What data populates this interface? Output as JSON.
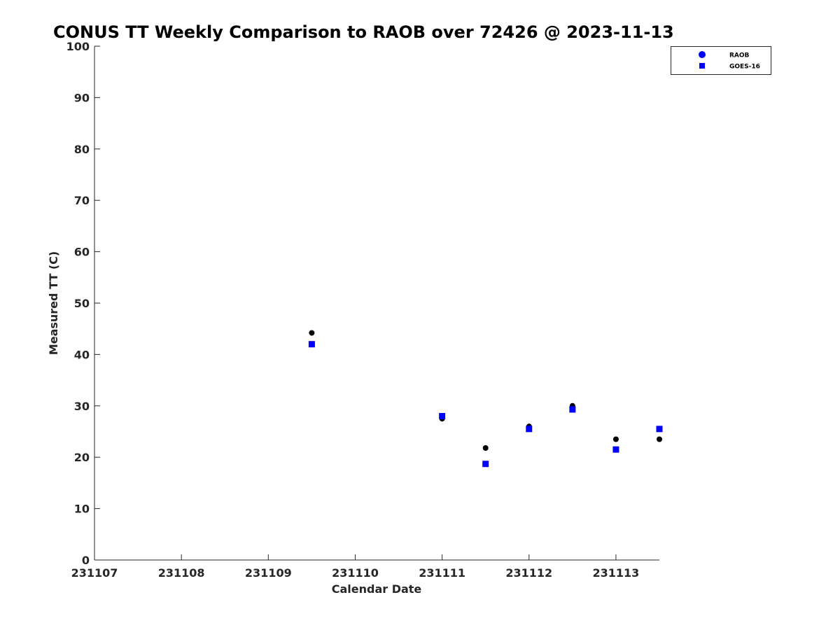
{
  "chart_data": {
    "type": "scatter",
    "title": "CONUS TT Weekly Comparison to RAOB over 72426 @ 2023-11-13",
    "xlabel": "Calendar Date",
    "ylabel": "Measured TT (C)",
    "xlim": [
      "2023-11-07",
      "2023-11-13T12:00"
    ],
    "ylim": [
      0,
      100
    ],
    "x_ticks": [
      {
        "value": "2023-11-07",
        "label": "231107"
      },
      {
        "value": "2023-11-08",
        "label": "231108"
      },
      {
        "value": "2023-11-09",
        "label": "231109"
      },
      {
        "value": "2023-11-10",
        "label": "231110"
      },
      {
        "value": "2023-11-11",
        "label": "231111"
      },
      {
        "value": "2023-11-12",
        "label": "231112"
      },
      {
        "value": "2023-11-13",
        "label": "231113"
      }
    ],
    "y_ticks": [
      0,
      10,
      20,
      30,
      40,
      50,
      60,
      70,
      80,
      90,
      100
    ],
    "grid": false,
    "legend_position": "top-right",
    "series": [
      {
        "name": "RAOB",
        "marker": "circle",
        "color": "#000000",
        "legend_color": "#0000ff",
        "points": [
          {
            "x": "2023-11-09T12:00",
            "y": 44.2
          },
          {
            "x": "2023-11-11T00:00",
            "y": 27.5
          },
          {
            "x": "2023-11-11T12:00",
            "y": 21.8
          },
          {
            "x": "2023-11-12T00:00",
            "y": 26.0
          },
          {
            "x": "2023-11-12T12:00",
            "y": 30.0
          },
          {
            "x": "2023-11-13T00:00",
            "y": 23.5
          },
          {
            "x": "2023-11-13T12:00",
            "y": 23.5
          }
        ]
      },
      {
        "name": "GOES-16",
        "marker": "square",
        "color": "#0000ff",
        "legend_color": "#0000ff",
        "points": [
          {
            "x": "2023-11-09T12:00",
            "y": 42.0
          },
          {
            "x": "2023-11-11T00:00",
            "y": 28.0
          },
          {
            "x": "2023-11-11T12:00",
            "y": 18.7
          },
          {
            "x": "2023-11-12T00:00",
            "y": 25.5
          },
          {
            "x": "2023-11-12T12:00",
            "y": 29.3
          },
          {
            "x": "2023-11-13T00:00",
            "y": 21.5
          },
          {
            "x": "2023-11-13T12:00",
            "y": 25.5
          }
        ]
      }
    ]
  }
}
